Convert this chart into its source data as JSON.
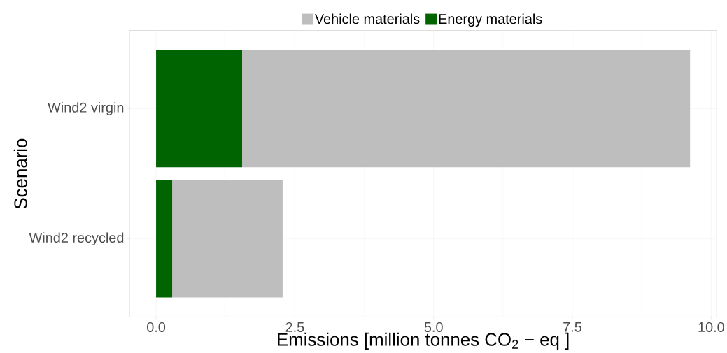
{
  "chart_data": {
    "type": "bar",
    "orientation": "horizontal",
    "stacked": true,
    "xlabel": "Emissions [million tonnes  CO$_{2}$ − eq ]",
    "ylabel": "Scenario",
    "categories": [
      "Wind2 virgin",
      "Wind2 recycled"
    ],
    "series": [
      {
        "name": "Energy materials",
        "color": "#006400",
        "values": [
          1.55,
          0.29
        ]
      },
      {
        "name": "Vehicle materials",
        "color": "#bebebe",
        "values": [
          8.07,
          1.99
        ]
      }
    ],
    "xlim": [
      -0.48,
      10.1
    ],
    "xticks": [
      {
        "value": 0,
        "label": "0.0"
      },
      2.5,
      {
        "value": 5,
        "label": "5.0"
      },
      7.5,
      {
        "value": 10,
        "label": "10.0"
      }
    ],
    "grid": true,
    "legend": "top"
  }
}
